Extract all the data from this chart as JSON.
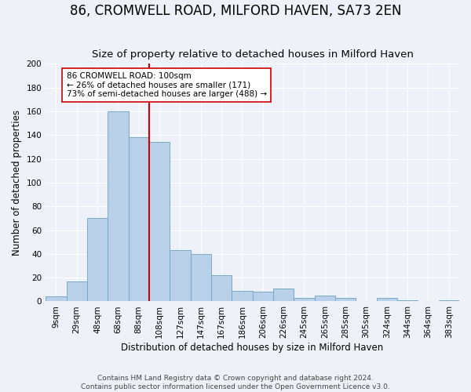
{
  "title": "86, CROMWELL ROAD, MILFORD HAVEN, SA73 2EN",
  "subtitle": "Size of property relative to detached houses in Milford Haven",
  "xlabel": "Distribution of detached houses by size in Milford Haven",
  "ylabel": "Number of detached properties",
  "bin_labels": [
    "9sqm",
    "29sqm",
    "48sqm",
    "68sqm",
    "88sqm",
    "108sqm",
    "127sqm",
    "147sqm",
    "167sqm",
    "186sqm",
    "206sqm",
    "226sqm",
    "245sqm",
    "265sqm",
    "285sqm",
    "305sqm",
    "324sqm",
    "344sqm",
    "364sqm",
    "383sqm"
  ],
  "bar_values": [
    4,
    17,
    70,
    160,
    138,
    134,
    43,
    40,
    22,
    9,
    8,
    11,
    3,
    5,
    3,
    0,
    3,
    1,
    0,
    1
  ],
  "bar_color": "#b8d0e8",
  "bar_edge_color": "#7aaac8",
  "vline_x_idx": 4,
  "vline_color": "#cc0000",
  "annotation_text": "86 CROMWELL ROAD: 100sqm\n← 26% of detached houses are smaller (171)\n73% of semi-detached houses are larger (488) →",
  "annotation_box_color": "#ffffff",
  "annotation_box_edge": "#cc0000",
  "ylim": [
    0,
    200
  ],
  "yticks": [
    0,
    20,
    40,
    60,
    80,
    100,
    120,
    140,
    160,
    180,
    200
  ],
  "footer_line1": "Contains HM Land Registry data © Crown copyright and database right 2024.",
  "footer_line2": "Contains public sector information licensed under the Open Government Licence v3.0.",
  "bg_color": "#eef2f8",
  "title_fontsize": 12,
  "subtitle_fontsize": 9.5,
  "axis_label_fontsize": 8.5,
  "tick_fontsize": 7.5,
  "annotation_fontsize": 7.5,
  "footer_fontsize": 6.5
}
